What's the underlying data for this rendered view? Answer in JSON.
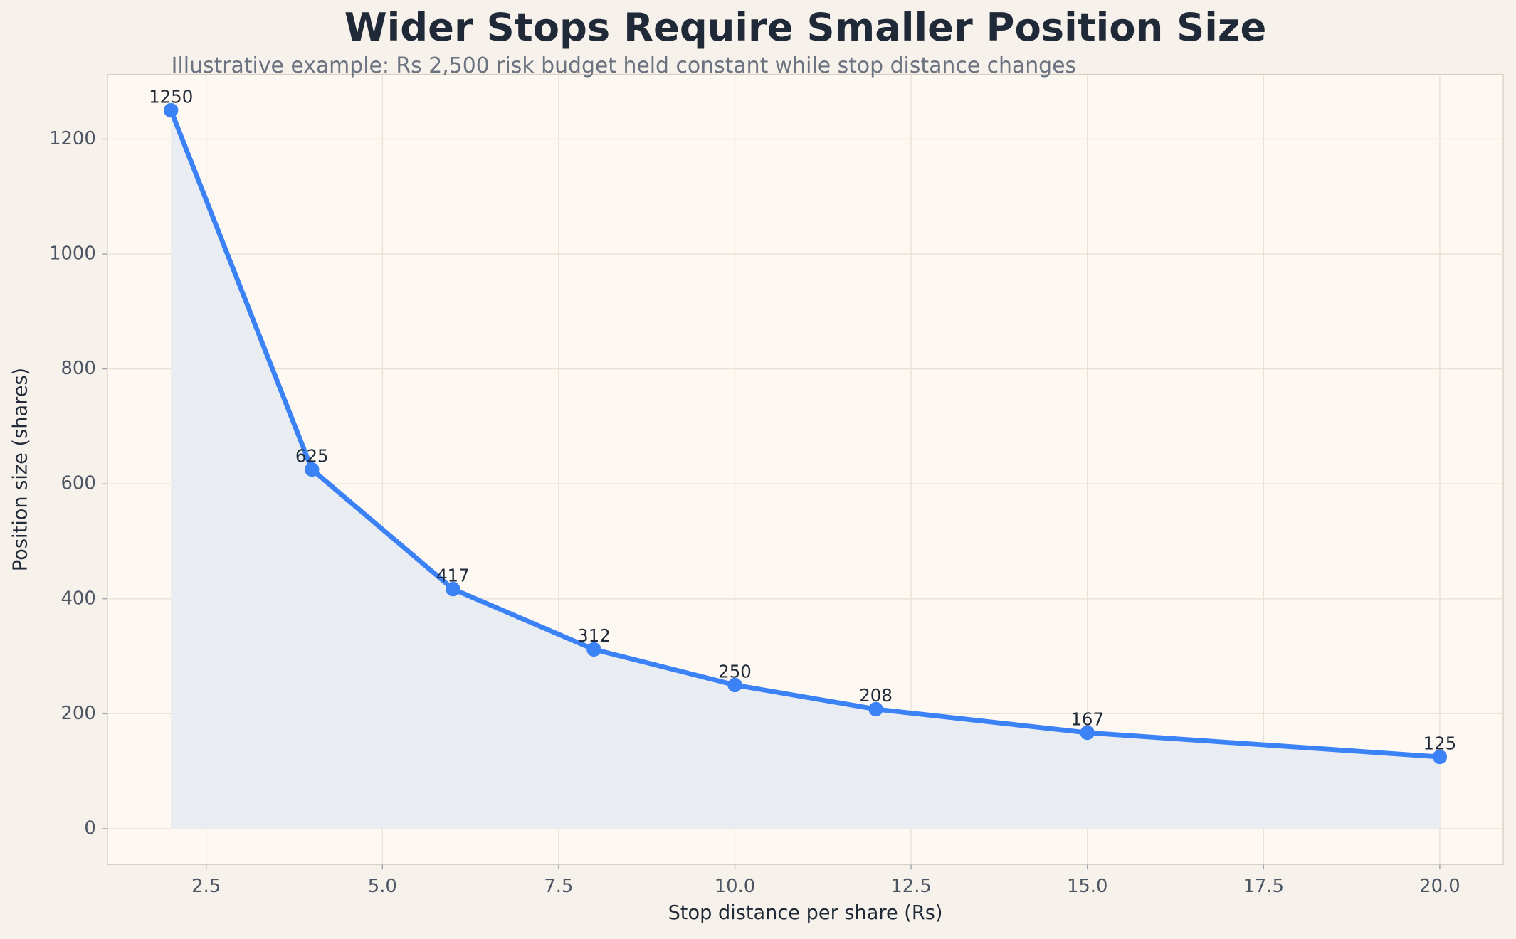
{
  "chart_data": {
    "type": "line",
    "title": "Wider Stops Require Smaller Position Size",
    "subtitle": "Illustrative example: Rs 2,500 risk budget held constant while stop distance changes",
    "x_label": "Stop distance per share (Rs)",
    "y_label": "Position size (shares)",
    "x": [
      2,
      4,
      6,
      8,
      10,
      12,
      15,
      20
    ],
    "series": [
      {
        "name": "Position size",
        "color": "#3b82f6",
        "values": [
          1250,
          625,
          417,
          312,
          250,
          208,
          167,
          125
        ]
      }
    ],
    "xlim": [
      1.1,
      20.9
    ],
    "ylim": [
      -62.5,
      1312.5
    ],
    "xticks": [
      2.5,
      {
        "value": 5,
        "label": "5.0"
      },
      7.5,
      {
        "value": 10,
        "label": "10.0"
      },
      12.5,
      {
        "value": 15,
        "label": "15.0"
      },
      17.5,
      {
        "value": 20,
        "label": "20.0"
      }
    ],
    "yticks": [
      0,
      200,
      400,
      600,
      800,
      1000,
      1200
    ],
    "grid": true,
    "fill_color": "#e9ecf1"
  }
}
